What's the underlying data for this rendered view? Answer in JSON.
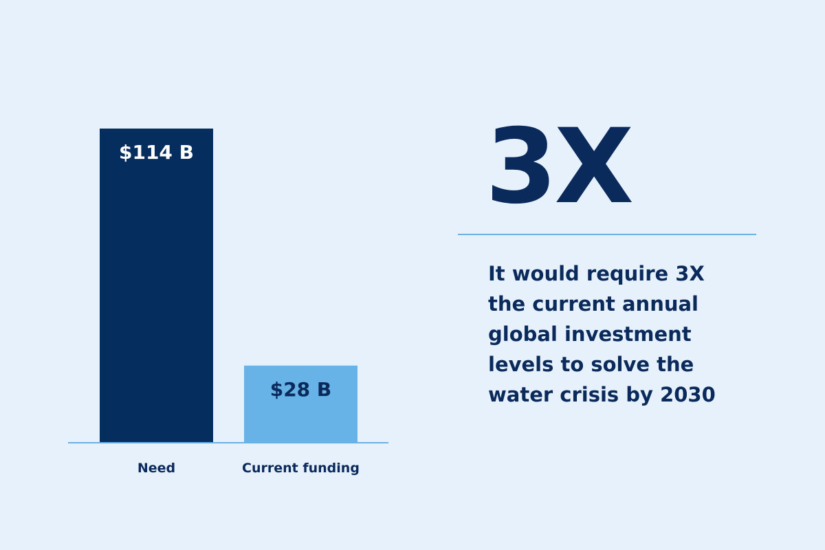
{
  "chart_data": {
    "type": "bar",
    "categories": [
      "Need",
      "Current funding"
    ],
    "values": [
      114,
      28
    ],
    "value_labels": [
      "$114 B",
      "$28 B"
    ],
    "ylim": [
      0,
      114
    ],
    "title": "",
    "xlabel": "",
    "ylabel": "",
    "grid": false,
    "legend": "none"
  },
  "colors": {
    "background": "#e6f1fb",
    "need_bar": "#052d5d",
    "funding_bar": "#67b2e6",
    "baseline": "#6ab0e3",
    "need_label": "#ffffff",
    "funding_label": "#0b2a5c",
    "text": "#0b2a5c"
  },
  "callout": {
    "stat": "3X",
    "text": "It would require 3X the current annual global investment levels to solve the water crisis by 2030"
  }
}
